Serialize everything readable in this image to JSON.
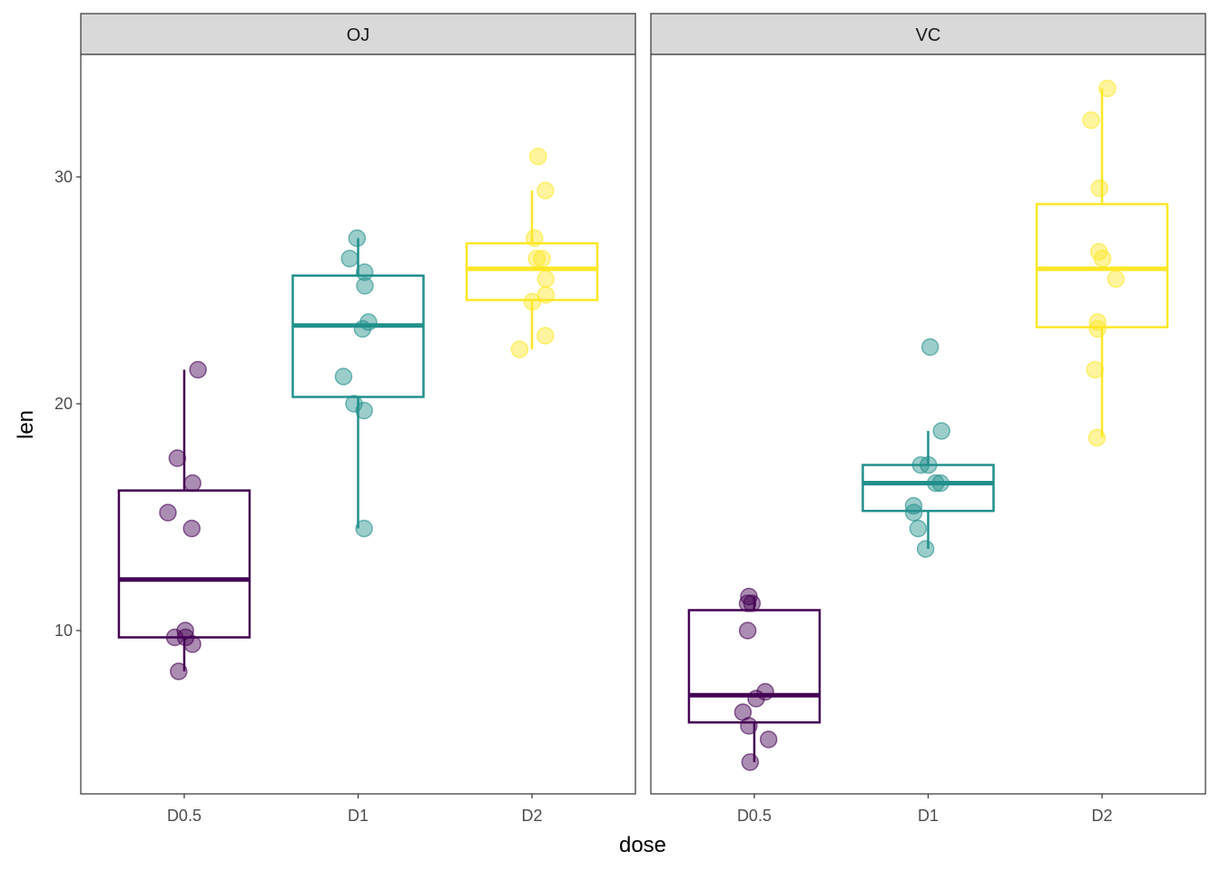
{
  "chart_data": {
    "type": "boxplot",
    "xlabel": "dose",
    "ylabel": "len",
    "categories": [
      "D0.5",
      "D1",
      "D2"
    ],
    "colors": [
      "#440154",
      "#21908C",
      "#FDE725"
    ],
    "ylim": [
      2.8,
      35.4
    ],
    "yticks": [
      10,
      20,
      30
    ],
    "ytick_labels": [
      "10",
      "20",
      "30"
    ],
    "facets": [
      {
        "label": "OJ",
        "groups": [
          [
            15.2,
            21.5,
            17.6,
            9.7,
            14.5,
            10,
            8.2,
            9.4,
            16.5,
            9.7
          ],
          [
            19.7,
            23.3,
            23.6,
            26.4,
            20,
            25.2,
            25.8,
            21.2,
            14.5,
            27.3
          ],
          [
            25.5,
            26.4,
            22.4,
            24.5,
            24.8,
            30.9,
            26.4,
            27.3,
            29.4,
            23
          ]
        ]
      },
      {
        "label": "VC",
        "groups": [
          [
            4.2,
            11.5,
            7.3,
            5.8,
            6.4,
            10,
            11.2,
            11.2,
            5.2,
            7
          ],
          [
            16.5,
            16.5,
            15.2,
            17.3,
            22.5,
            17.3,
            13.6,
            14.5,
            18.8,
            15.5
          ],
          [
            23.6,
            18.5,
            33.9,
            25.5,
            26.4,
            32.5,
            26.7,
            21.5,
            23.3,
            29.5
          ]
        ]
      }
    ]
  }
}
